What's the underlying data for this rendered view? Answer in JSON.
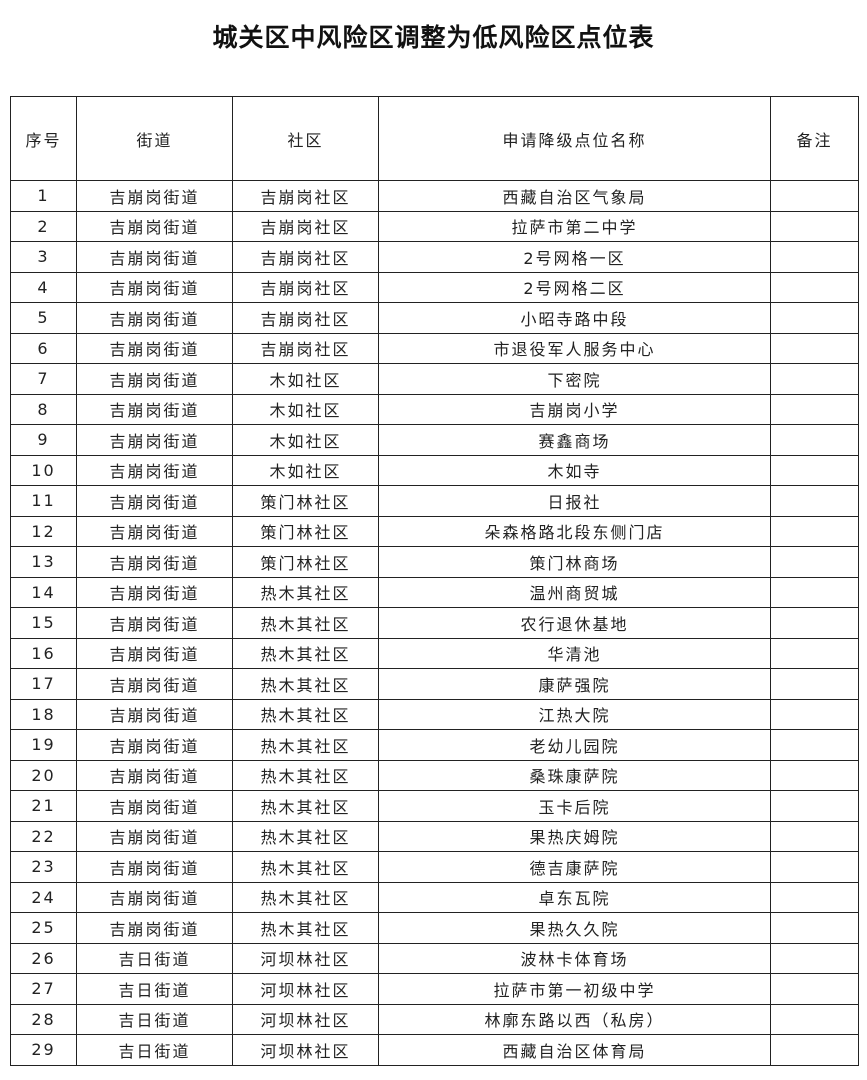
{
  "title": "城关区中风险区调整为低风险区点位表",
  "headers": [
    "序号",
    "街道",
    "社区",
    "申请降级点位名称",
    "备注"
  ],
  "rows": [
    [
      "1",
      "吉崩岗街道",
      "吉崩岗社区",
      "西藏自治区气象局",
      ""
    ],
    [
      "2",
      "吉崩岗街道",
      "吉崩岗社区",
      "拉萨市第二中学",
      ""
    ],
    [
      "3",
      "吉崩岗街道",
      "吉崩岗社区",
      "2号网格一区",
      ""
    ],
    [
      "4",
      "吉崩岗街道",
      "吉崩岗社区",
      "2号网格二区",
      ""
    ],
    [
      "5",
      "吉崩岗街道",
      "吉崩岗社区",
      "小昭寺路中段",
      ""
    ],
    [
      "6",
      "吉崩岗街道",
      "吉崩岗社区",
      "市退役军人服务中心",
      ""
    ],
    [
      "7",
      "吉崩岗街道",
      "木如社区",
      "下密院",
      ""
    ],
    [
      "8",
      "吉崩岗街道",
      "木如社区",
      "吉崩岗小学",
      ""
    ],
    [
      "9",
      "吉崩岗街道",
      "木如社区",
      "赛鑫商场",
      ""
    ],
    [
      "10",
      "吉崩岗街道",
      "木如社区",
      "木如寺",
      ""
    ],
    [
      "11",
      "吉崩岗街道",
      "策门林社区",
      "日报社",
      ""
    ],
    [
      "12",
      "吉崩岗街道",
      "策门林社区",
      "朵森格路北段东侧门店",
      ""
    ],
    [
      "13",
      "吉崩岗街道",
      "策门林社区",
      "策门林商场",
      ""
    ],
    [
      "14",
      "吉崩岗街道",
      "热木其社区",
      "温州商贸城",
      ""
    ],
    [
      "15",
      "吉崩岗街道",
      "热木其社区",
      "农行退休基地",
      ""
    ],
    [
      "16",
      "吉崩岗街道",
      "热木其社区",
      "华清池",
      ""
    ],
    [
      "17",
      "吉崩岗街道",
      "热木其社区",
      "康萨强院",
      ""
    ],
    [
      "18",
      "吉崩岗街道",
      "热木其社区",
      "江热大院",
      ""
    ],
    [
      "19",
      "吉崩岗街道",
      "热木其社区",
      "老幼儿园院",
      ""
    ],
    [
      "20",
      "吉崩岗街道",
      "热木其社区",
      "桑珠康萨院",
      ""
    ],
    [
      "21",
      "吉崩岗街道",
      "热木其社区",
      "玉卡后院",
      ""
    ],
    [
      "22",
      "吉崩岗街道",
      "热木其社区",
      "果热庆姆院",
      ""
    ],
    [
      "23",
      "吉崩岗街道",
      "热木其社区",
      "德吉康萨院",
      ""
    ],
    [
      "24",
      "吉崩岗街道",
      "热木其社区",
      "卓东瓦院",
      ""
    ],
    [
      "25",
      "吉崩岗街道",
      "热木其社区",
      "果热久久院",
      ""
    ],
    [
      "26",
      "吉日街道",
      "河坝林社区",
      "波林卡体育场",
      ""
    ],
    [
      "27",
      "吉日街道",
      "河坝林社区",
      "拉萨市第一初级中学",
      ""
    ],
    [
      "28",
      "吉日街道",
      "河坝林社区",
      "林廓东路以西（私房）",
      ""
    ],
    [
      "29",
      "吉日街道",
      "河坝林社区",
      "西藏自治区体育局",
      ""
    ]
  ]
}
